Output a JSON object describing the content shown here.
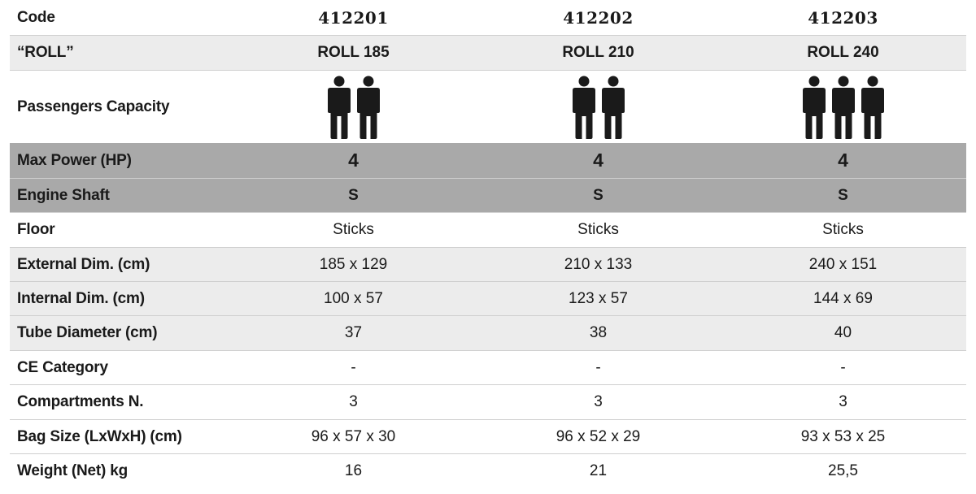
{
  "header_row": {
    "label": "Code",
    "values": [
      "412201",
      "412202",
      "412203"
    ]
  },
  "model_row": {
    "label": "“ROLL”",
    "values": [
      "ROLL 185",
      "ROLL 210",
      "ROLL 240"
    ]
  },
  "passengers_row": {
    "label": "Passengers Capacity",
    "counts": [
      2,
      2,
      3
    ],
    "icon": "person-icon"
  },
  "rows": [
    {
      "label": "Max Power (HP)",
      "values": [
        "4",
        "4",
        "4"
      ]
    },
    {
      "label": "Engine Shaft",
      "values": [
        "S",
        "S",
        "S"
      ]
    },
    {
      "label": "Floor",
      "values": [
        "Sticks",
        "Sticks",
        "Sticks"
      ]
    },
    {
      "label": "External Dim. (cm)",
      "values": [
        "185 x 129",
        "210 x 133",
        "240 x 151"
      ]
    },
    {
      "label": "Internal Dim. (cm)",
      "values": [
        "100 x 57",
        "123 x 57",
        "144 x 69"
      ]
    },
    {
      "label": "Tube Diameter (cm)",
      "values": [
        "37",
        "38",
        "40"
      ]
    },
    {
      "label": "CE Category",
      "values": [
        "-",
        "-",
        "-"
      ]
    },
    {
      "label": "Compartments N.",
      "values": [
        "3",
        "3",
        "3"
      ]
    },
    {
      "label": "Bag Size (LxWxH) (cm)",
      "values": [
        "96 x 57 x 30",
        "96 x 52 x 29",
        "93 x 53 x 25"
      ]
    },
    {
      "label": "Weight (Net) kg",
      "values": [
        "16",
        "21",
        "25,5"
      ]
    }
  ],
  "colors": {
    "light_row": "#ececec",
    "dark_row": "#a9a9a9",
    "icon": "#1a1a1a"
  }
}
